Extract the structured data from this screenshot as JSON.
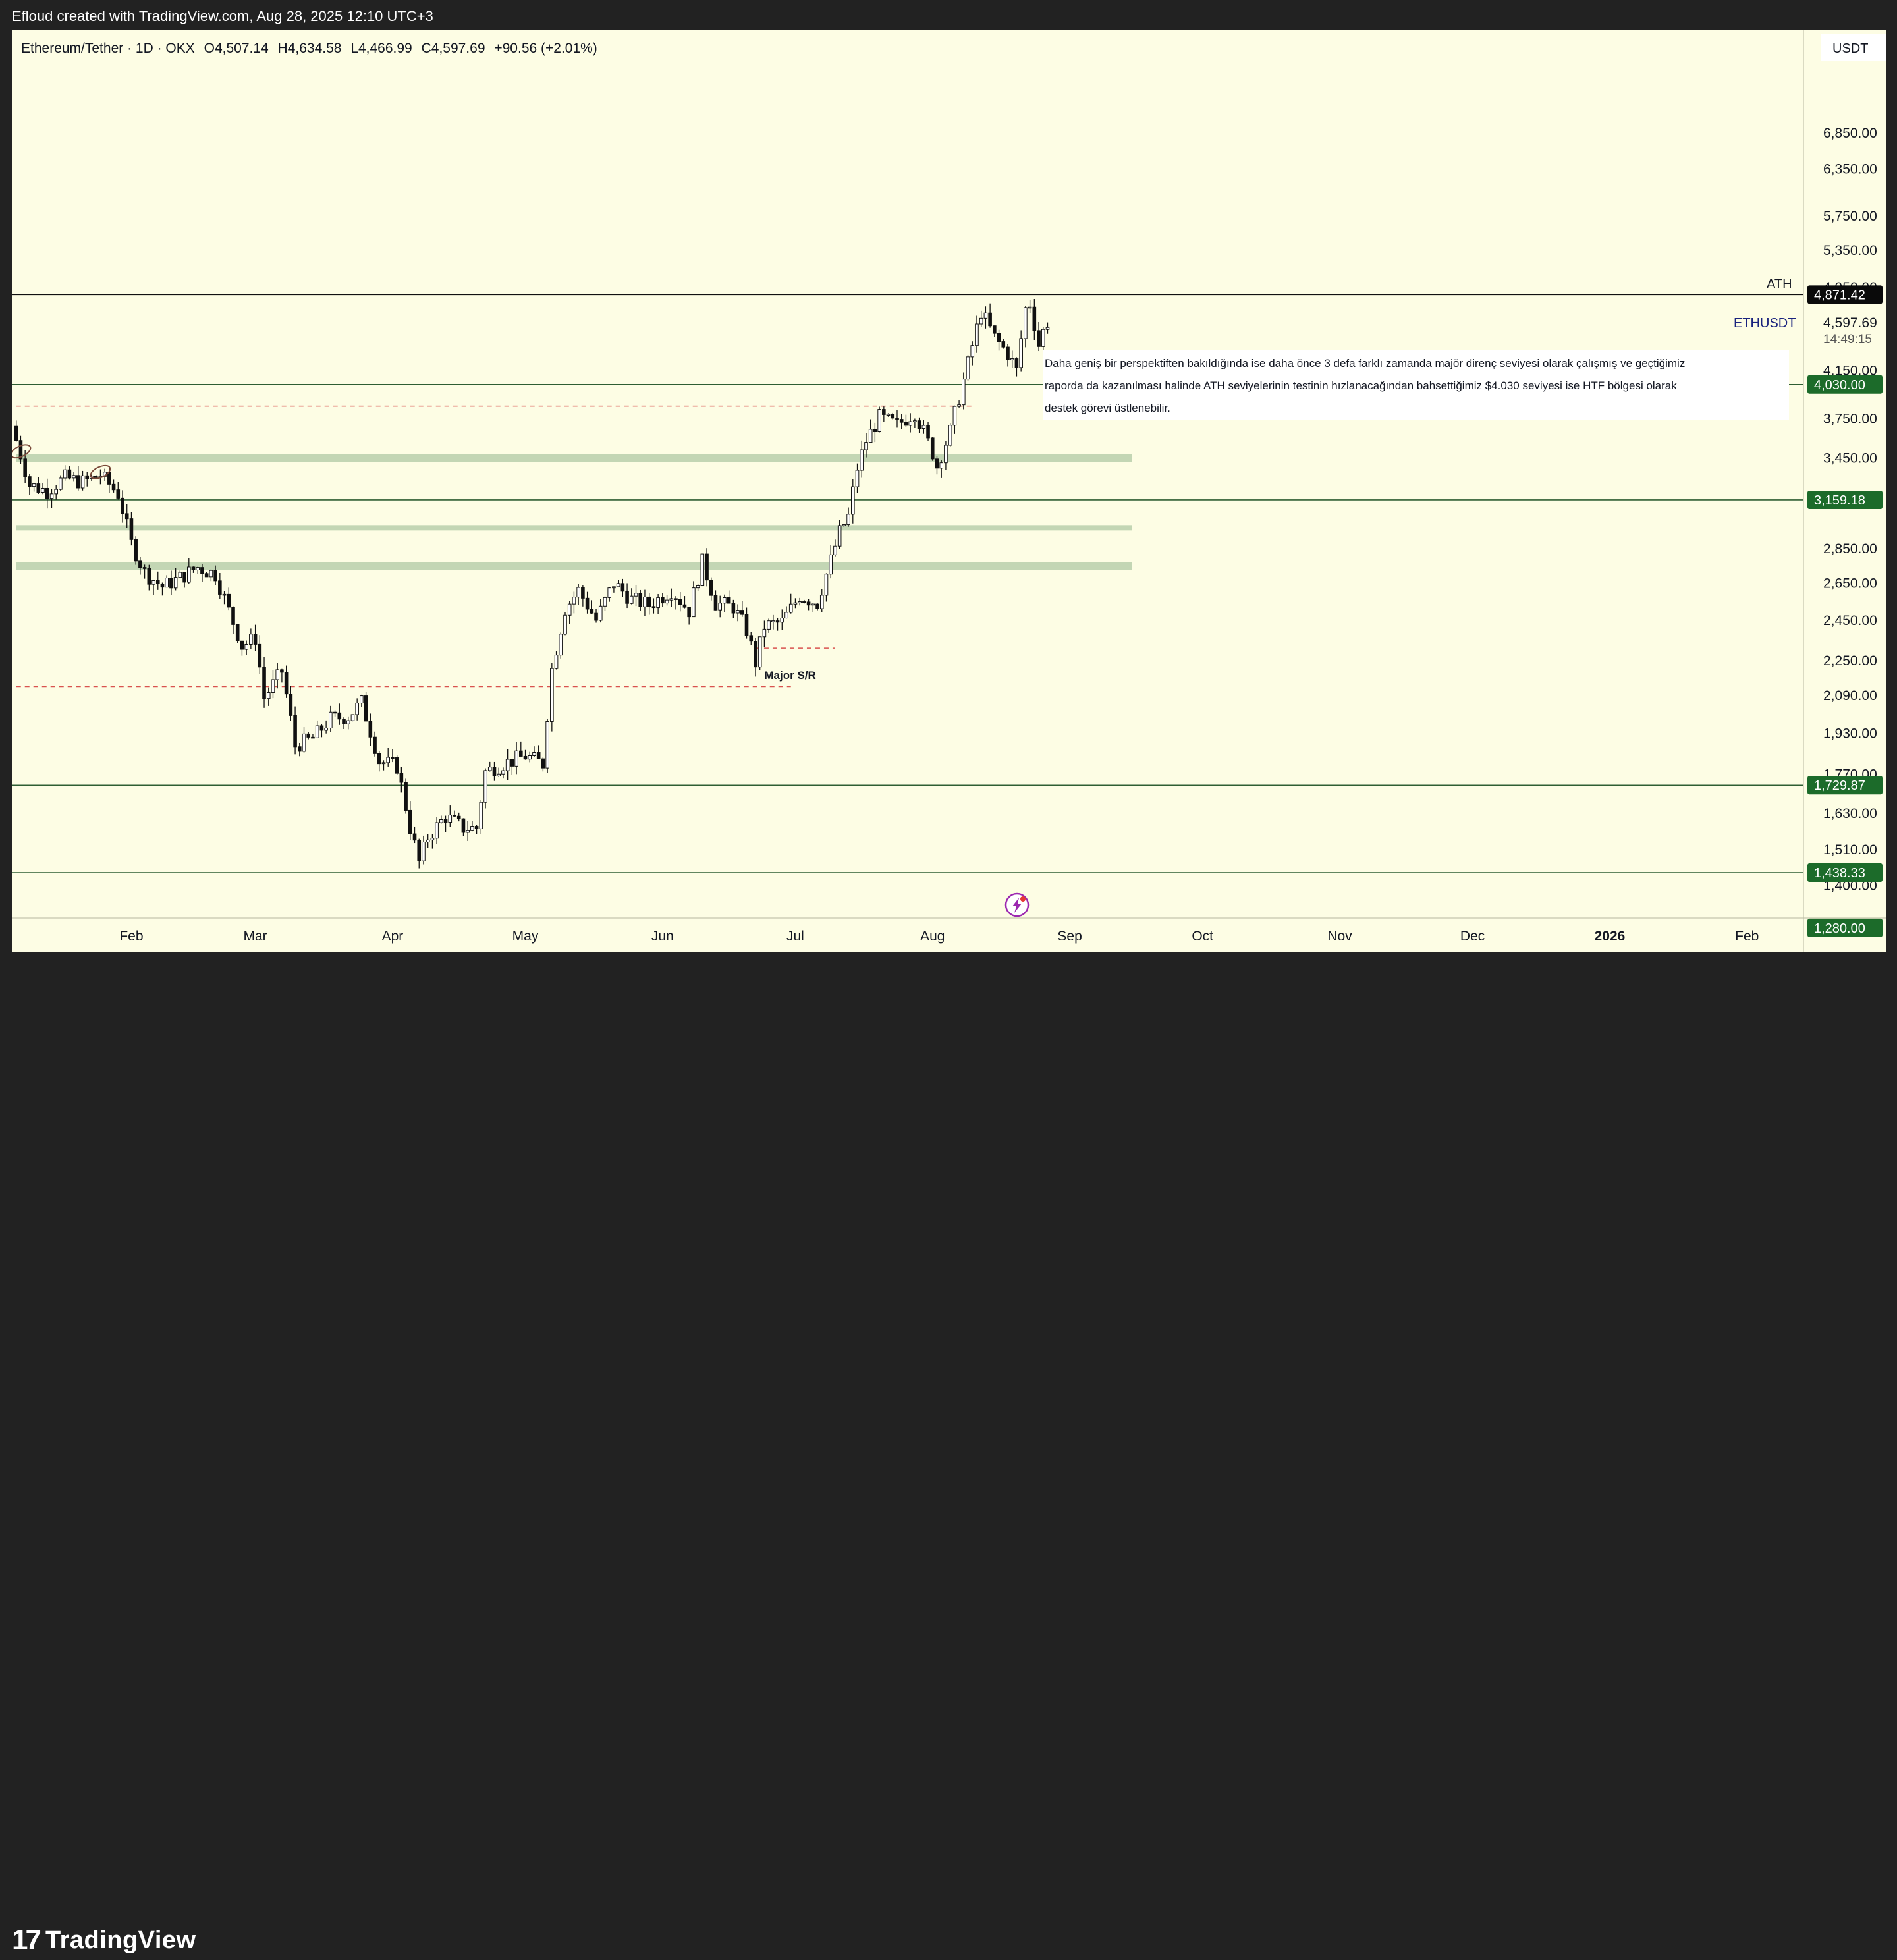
{
  "header": {
    "created_by": "Efloud created with TradingView.com, Aug 28, 2025 12:10 UTC+3"
  },
  "footer": {
    "brand": "TradingView",
    "logo_icon": "tradingview-logo-icon"
  },
  "legend": {
    "symbol": "Ethereum/Tether · 1D · OKX",
    "open": "O4,507.14",
    "high": "H4,634.58",
    "low": "L4,466.99",
    "close": "C4,597.69",
    "change": "+90.56 (+2.01%)"
  },
  "annotation_text": [
    "Daha geniş bir perspektiften bakıldığında ise daha önce 3 defa farklı zamanda majör direnç seviyesi olarak çalışmış ve geçtiğimiz",
    "raporda da kazanılması halinde ATH seviyelerinin testinin hızlanacağından bahsettiğimiz $4.030 seviyesi ise HTF bölgesi olarak",
    "destek görevi üstlenebilir."
  ],
  "colors": {
    "background": "#fdfde4",
    "frame": "#222222",
    "candle": "#111111",
    "level_line": "#2f5e33",
    "level_badge": "#1c6b2a",
    "dashed_line": "#d9534f",
    "zone": "#c3d6b4",
    "ath_badge": "#0a0a0a"
  },
  "chart_data": {
    "type": "candlestick",
    "symbol": "ETHUSDT",
    "exchange": "OKX",
    "timeframe": "1D",
    "y_axis": {
      "unit": "USDT",
      "scale": "log",
      "range": [
        1250,
        8300
      ],
      "ticks": [
        "6,850.00",
        "6,350.00",
        "5,750.00",
        "5,350.00",
        "4,950.00",
        "4,150.00",
        "3,750.00",
        "3,450.00",
        "2,850.00",
        "2,650.00",
        "2,450.00",
        "2,250.00",
        "2,090.00",
        "1,930.00",
        "1,770.00",
        "1,630.00",
        "1,510.00",
        "1,400.00"
      ]
    },
    "x_axis": {
      "ticks": [
        {
          "label": "Feb",
          "date": "2025-02-01"
        },
        {
          "label": "Mar",
          "date": "2025-03-01"
        },
        {
          "label": "Apr",
          "date": "2025-04-01"
        },
        {
          "label": "May",
          "date": "2025-05-01"
        },
        {
          "label": "Jun",
          "date": "2025-06-01"
        },
        {
          "label": "Jul",
          "date": "2025-07-01"
        },
        {
          "label": "Aug",
          "date": "2025-08-01"
        },
        {
          "label": "Sep",
          "date": "2025-09-01"
        },
        {
          "label": "Oct",
          "date": "2025-10-01"
        },
        {
          "label": "Nov",
          "date": "2025-11-01"
        },
        {
          "label": "Dec",
          "date": "2025-12-01"
        },
        {
          "label": "2026",
          "date": "2026-01-01",
          "bold": true
        },
        {
          "label": "Feb",
          "date": "2026-02-01"
        }
      ]
    },
    "last_price": {
      "label": "ETHUSDT",
      "value": "4,597.69",
      "countdown": "14:49:15",
      "price": 4597.69
    },
    "levels": [
      {
        "label": "4,871.42",
        "price": 4871.42,
        "name": "ATH",
        "style": "ath"
      },
      {
        "label": "4,030.00",
        "price": 4030,
        "style": "green"
      },
      {
        "label": "3,159.18",
        "price": 3159.18,
        "style": "green"
      },
      {
        "label": "1,729.87",
        "price": 1729.87,
        "style": "green"
      },
      {
        "label": "1,438.33",
        "price": 1438.33,
        "style": "green"
      },
      {
        "label": "1,280.00",
        "price": 1280,
        "style": "green",
        "line": false
      }
    ],
    "dashed_levels": [
      {
        "price": 3850,
        "from": "2025-01-06",
        "to": "2025-08-10"
      },
      {
        "price": 2130,
        "from": "2025-01-06",
        "to": "2025-06-30"
      },
      {
        "price": 2310,
        "from": "2025-06-22",
        "to": "2025-07-10"
      }
    ],
    "zones": [
      {
        "low": 3420,
        "high": 3480,
        "from": "2025-01-06",
        "to": "2025-09-15"
      },
      {
        "low": 2965,
        "high": 2995,
        "from": "2025-01-06",
        "to": "2025-09-15"
      },
      {
        "low": 2725,
        "high": 2770,
        "from": "2025-01-06",
        "to": "2025-09-15"
      }
    ],
    "text_labels": [
      {
        "text": "Major S/R",
        "date": "2025-06-24",
        "price": 2165
      }
    ],
    "markers": [
      {
        "shape": "ellipse",
        "date": "2025-01-07",
        "price": 3500
      },
      {
        "shape": "ellipse",
        "date": "2025-01-25",
        "price": 3350
      }
    ],
    "closes": [
      {
        "d": "2025-01-06",
        "c": 3690
      },
      {
        "d": "2025-01-10",
        "c": 3260
      },
      {
        "d": "2025-01-14",
        "c": 3220
      },
      {
        "d": "2025-01-18",
        "c": 3310
      },
      {
        "d": "2025-01-22",
        "c": 3280
      },
      {
        "d": "2025-01-26",
        "c": 3330
      },
      {
        "d": "2025-01-30",
        "c": 3200
      },
      {
        "d": "2025-02-02",
        "c": 2880
      },
      {
        "d": "2025-02-05",
        "c": 2710
      },
      {
        "d": "2025-02-09",
        "c": 2630
      },
      {
        "d": "2025-02-13",
        "c": 2680
      },
      {
        "d": "2025-02-17",
        "c": 2740
      },
      {
        "d": "2025-02-21",
        "c": 2700
      },
      {
        "d": "2025-02-24",
        "c": 2500
      },
      {
        "d": "2025-02-27",
        "c": 2320
      },
      {
        "d": "2025-03-02",
        "c": 2360
      },
      {
        "d": "2025-03-04",
        "c": 2080
      },
      {
        "d": "2025-03-08",
        "c": 2200
      },
      {
        "d": "2025-03-11",
        "c": 1880
      },
      {
        "d": "2025-03-15",
        "c": 1910
      },
      {
        "d": "2025-03-19",
        "c": 1990
      },
      {
        "d": "2025-03-23",
        "c": 2000
      },
      {
        "d": "2025-03-26",
        "c": 2060
      },
      {
        "d": "2025-03-30",
        "c": 1820
      },
      {
        "d": "2025-04-03",
        "c": 1800
      },
      {
        "d": "2025-04-06",
        "c": 1580
      },
      {
        "d": "2025-04-08",
        "c": 1470
      },
      {
        "d": "2025-04-10",
        "c": 1550
      },
      {
        "d": "2025-04-14",
        "c": 1620
      },
      {
        "d": "2025-04-18",
        "c": 1580
      },
      {
        "d": "2025-04-21",
        "c": 1580
      },
      {
        "d": "2025-04-23",
        "c": 1780
      },
      {
        "d": "2025-04-27",
        "c": 1810
      },
      {
        "d": "2025-05-02",
        "c": 1840
      },
      {
        "d": "2025-05-06",
        "c": 1810
      },
      {
        "d": "2025-05-08",
        "c": 2210
      },
      {
        "d": "2025-05-11",
        "c": 2510
      },
      {
        "d": "2025-05-14",
        "c": 2610
      },
      {
        "d": "2025-05-18",
        "c": 2450
      },
      {
        "d": "2025-05-22",
        "c": 2650
      },
      {
        "d": "2025-05-26",
        "c": 2560
      },
      {
        "d": "2025-05-30",
        "c": 2530
      },
      {
        "d": "2025-06-04",
        "c": 2610
      },
      {
        "d": "2025-06-08",
        "c": 2500
      },
      {
        "d": "2025-06-11",
        "c": 2770
      },
      {
        "d": "2025-06-14",
        "c": 2540
      },
      {
        "d": "2025-06-18",
        "c": 2520
      },
      {
        "d": "2025-06-21",
        "c": 2400
      },
      {
        "d": "2025-06-23",
        "c": 2240
      },
      {
        "d": "2025-06-25",
        "c": 2420
      },
      {
        "d": "2025-06-29",
        "c": 2440
      },
      {
        "d": "2025-07-03",
        "c": 2580
      },
      {
        "d": "2025-07-07",
        "c": 2540
      },
      {
        "d": "2025-07-10",
        "c": 2780
      },
      {
        "d": "2025-07-12",
        "c": 2950
      },
      {
        "d": "2025-07-14",
        "c": 3050
      },
      {
        "d": "2025-07-16",
        "c": 3380
      },
      {
        "d": "2025-07-18",
        "c": 3580
      },
      {
        "d": "2025-07-21",
        "c": 3760
      },
      {
        "d": "2025-07-25",
        "c": 3700
      },
      {
        "d": "2025-07-29",
        "c": 3800
      },
      {
        "d": "2025-08-02",
        "c": 3490
      },
      {
        "d": "2025-08-03",
        "c": 3390
      },
      {
        "d": "2025-08-06",
        "c": 3650
      },
      {
        "d": "2025-08-08",
        "c": 3920
      },
      {
        "d": "2025-08-10",
        "c": 4210
      },
      {
        "d": "2025-08-13",
        "c": 4700
      },
      {
        "d": "2025-08-16",
        "c": 4450
      },
      {
        "d": "2025-08-19",
        "c": 4300
      },
      {
        "d": "2025-08-21",
        "c": 4150
      },
      {
        "d": "2025-08-23",
        "c": 4730
      },
      {
        "d": "2025-08-24",
        "c": 4780
      },
      {
        "d": "2025-08-26",
        "c": 4380
      },
      {
        "d": "2025-08-27",
        "c": 4507
      },
      {
        "d": "2025-08-28",
        "c": 4597.69
      }
    ]
  }
}
